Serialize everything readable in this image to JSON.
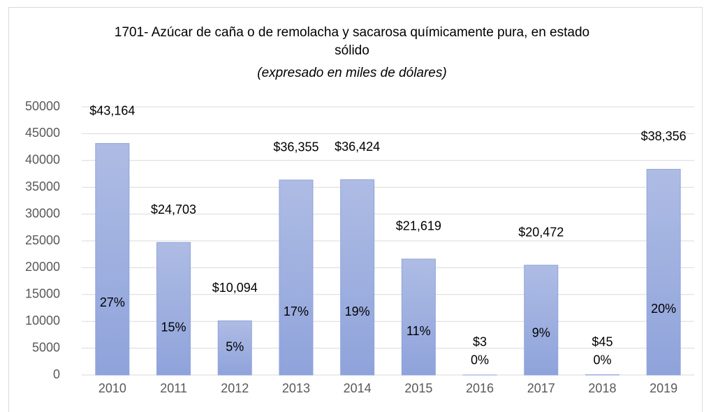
{
  "chart_data": {
    "type": "bar",
    "title": "1701- Azúcar de caña o de remolacha y sacarosa químicamente pura, en estado sólido",
    "subtitle": "(expresado en miles de dólares)",
    "categories": [
      "2010",
      "2011",
      "2012",
      "2013",
      "2014",
      "2015",
      "2016",
      "2017",
      "2018",
      "2019"
    ],
    "values": [
      43164,
      24703,
      10094,
      36355,
      36424,
      21619,
      3,
      20472,
      45,
      38356
    ],
    "value_labels": [
      "$43,164",
      "$24,703",
      "$10,094",
      "$36,355",
      "$36,424",
      "$21,619",
      "$3",
      "$20,472",
      "$45",
      "$38,356"
    ],
    "share_labels": [
      "27%",
      "15%",
      "5%",
      "17%",
      "19%",
      "11%",
      "0%",
      "9%",
      "0%",
      "20%"
    ],
    "color": "#8fa3db",
    "ylim": [
      0,
      50000
    ],
    "yticks": [
      0,
      5000,
      10000,
      15000,
      20000,
      25000,
      30000,
      35000,
      40000,
      45000,
      50000
    ],
    "grid": true
  }
}
